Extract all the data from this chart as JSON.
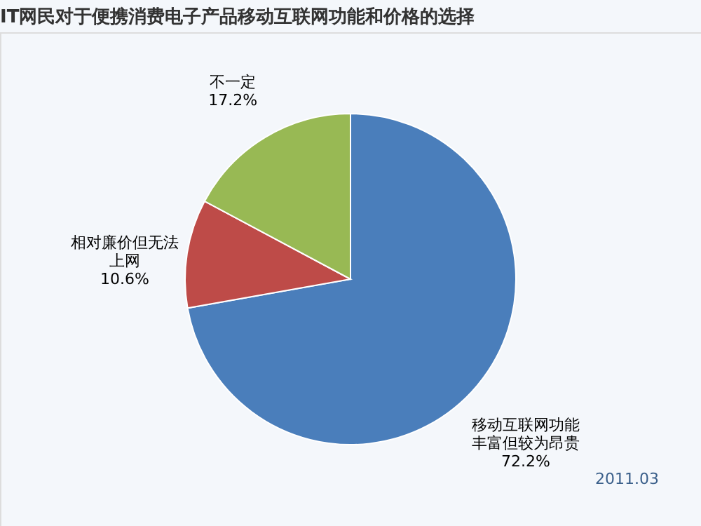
{
  "chart_data": {
    "type": "pie",
    "title": "IT网民对于便携消费电子产品移动互联网功能和价格的选择",
    "categories": [
      "移动互联网功能丰富但较为昂贵",
      "相对廉价但无法上网",
      "不一定"
    ],
    "values": [
      72.2,
      10.6,
      17.2
    ],
    "value_labels": [
      "72.2%",
      "10.6%",
      "17.2%"
    ],
    "colors": [
      "#4a7ebb",
      "#be4b48",
      "#98b954"
    ],
    "legend": false,
    "annotations": [
      "2011.03"
    ]
  }
}
